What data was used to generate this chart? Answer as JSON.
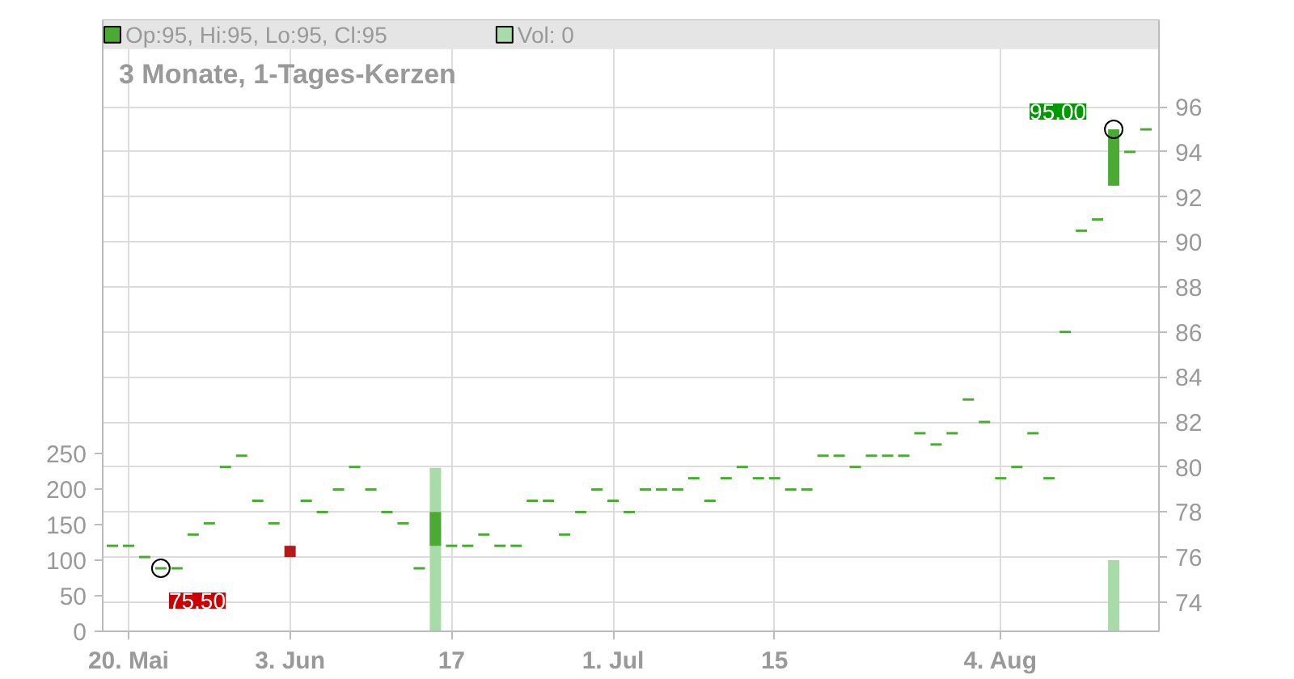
{
  "chart_data": {
    "type": "candlestick",
    "title": "3 Monate, 1-Tages-Kerzen",
    "categories": [
      null,
      "20. Mai",
      null,
      null,
      null,
      null,
      null,
      null,
      null,
      null,
      null,
      "3. Jun",
      null,
      null,
      null,
      null,
      null,
      null,
      null,
      null,
      null,
      "17",
      null,
      null,
      null,
      null,
      null,
      null,
      null,
      null,
      null,
      "1. Jul",
      null,
      null,
      null,
      null,
      null,
      null,
      null,
      null,
      null,
      "15",
      null,
      null,
      null,
      null,
      null,
      null,
      null,
      null,
      null,
      null,
      null,
      null,
      null,
      "4. Aug",
      null,
      null,
      null,
      null,
      null,
      null,
      null,
      null,
      null
    ],
    "series": [
      {
        "name": "Op:95, Hi:95, Lo:95, Cl:95",
        "color": "#4aaa33",
        "ohlc": [
          [
            76.5,
            76.5,
            76.5,
            76.5
          ],
          [
            76.5,
            76.5,
            76.5,
            76.5
          ],
          [
            76,
            76,
            76,
            76
          ],
          [
            75.5,
            75.5,
            75.5,
            75.5
          ],
          [
            75.5,
            75.5,
            75.5,
            75.5
          ],
          [
            77,
            77,
            77,
            77
          ],
          [
            77.5,
            77.5,
            77.5,
            77.5
          ],
          [
            80,
            80,
            80,
            80
          ],
          [
            80.5,
            80.5,
            80.5,
            80.5
          ],
          [
            78.5,
            78.5,
            78.5,
            78.5
          ],
          [
            77.5,
            77.5,
            77.5,
            77.5
          ],
          [
            76.5,
            76.5,
            76,
            76
          ],
          [
            78.5,
            78.5,
            78.5,
            78.5
          ],
          [
            78,
            78,
            78,
            78
          ],
          [
            79,
            79,
            79,
            79
          ],
          [
            80,
            80,
            80,
            80
          ],
          [
            79,
            79,
            79,
            79
          ],
          [
            78,
            78,
            78,
            78
          ],
          [
            77.5,
            77.5,
            77.5,
            77.5
          ],
          [
            75.5,
            75.5,
            75.5,
            75.5
          ],
          [
            76.5,
            78,
            76.5,
            78
          ],
          [
            76.5,
            76.5,
            76.5,
            76.5
          ],
          [
            76.5,
            76.5,
            76.5,
            76.5
          ],
          [
            77,
            77,
            77,
            77
          ],
          [
            76.5,
            76.5,
            76.5,
            76.5
          ],
          [
            76.5,
            76.5,
            76.5,
            76.5
          ],
          [
            78.5,
            78.5,
            78.5,
            78.5
          ],
          [
            78.5,
            78.5,
            78.5,
            78.5
          ],
          [
            77,
            77,
            77,
            77
          ],
          [
            78,
            78,
            78,
            78
          ],
          [
            79,
            79,
            79,
            79
          ],
          [
            78.5,
            78.5,
            78.5,
            78.5
          ],
          [
            78,
            78,
            78,
            78
          ],
          [
            79,
            79,
            79,
            79
          ],
          [
            79,
            79,
            79,
            79
          ],
          [
            79,
            79,
            79,
            79
          ],
          [
            79.5,
            79.5,
            79.5,
            79.5
          ],
          [
            78.5,
            78.5,
            78.5,
            78.5
          ],
          [
            79.5,
            79.5,
            79.5,
            79.5
          ],
          [
            80,
            80,
            80,
            80
          ],
          [
            79.5,
            79.5,
            79.5,
            79.5
          ],
          [
            79.5,
            79.5,
            79.5,
            79.5
          ],
          [
            79,
            79,
            79,
            79
          ],
          [
            79,
            79,
            79,
            79
          ],
          [
            80.5,
            80.5,
            80.5,
            80.5
          ],
          [
            80.5,
            80.5,
            80.5,
            80.5
          ],
          [
            80,
            80,
            80,
            80
          ],
          [
            80.5,
            80.5,
            80.5,
            80.5
          ],
          [
            80.5,
            80.5,
            80.5,
            80.5
          ],
          [
            80.5,
            80.5,
            80.5,
            80.5
          ],
          [
            81.5,
            81.5,
            81.5,
            81.5
          ],
          [
            81,
            81,
            81,
            81
          ],
          [
            81.5,
            81.5,
            81.5,
            81.5
          ],
          [
            83,
            83,
            83,
            83
          ],
          [
            82,
            82,
            82,
            82
          ],
          [
            79.5,
            79.5,
            79.5,
            79.5
          ],
          [
            80,
            80,
            80,
            80
          ],
          [
            81.5,
            81.5,
            81.5,
            81.5
          ],
          [
            79.5,
            79.5,
            79.5,
            79.5
          ],
          [
            86,
            86,
            86,
            86
          ],
          [
            90.5,
            90.5,
            90.5,
            90.5
          ],
          [
            91,
            91,
            91,
            91
          ],
          [
            92.5,
            95,
            92.5,
            95
          ],
          [
            94,
            94,
            94,
            94
          ],
          [
            95,
            95,
            95,
            95
          ]
        ],
        "colors": [
          "#4aaa33",
          "#4aaa33",
          "#4aaa33",
          "#4aaa33",
          "#4aaa33",
          "#4aaa33",
          "#4aaa33",
          "#4aaa33",
          "#4aaa33",
          "#4aaa33",
          "#4aaa33",
          "#b31b1b",
          "#4aaa33",
          "#4aaa33",
          "#4aaa33",
          "#4aaa33",
          "#4aaa33",
          "#4aaa33",
          "#4aaa33",
          "#4aaa33",
          "#4aaa33",
          "#4aaa33",
          "#4aaa33",
          "#4aaa33",
          "#4aaa33",
          "#4aaa33",
          "#4aaa33",
          "#4aaa33",
          "#4aaa33",
          "#4aaa33",
          "#4aaa33",
          "#4aaa33",
          "#4aaa33",
          "#4aaa33",
          "#4aaa33",
          "#4aaa33",
          "#4aaa33",
          "#4aaa33",
          "#4aaa33",
          "#4aaa33",
          "#4aaa33",
          "#4aaa33",
          "#4aaa33",
          "#4aaa33",
          "#4aaa33",
          "#4aaa33",
          "#4aaa33",
          "#4aaa33",
          "#4aaa33",
          "#4aaa33",
          "#4aaa33",
          "#4aaa33",
          "#4aaa33",
          "#4aaa33",
          "#4aaa33",
          "#4aaa33",
          "#4aaa33",
          "#4aaa33",
          "#4aaa33",
          "#4aaa33",
          "#4aaa33",
          "#4aaa33",
          "#4aaa33",
          "#4aaa33",
          "#4aaa33"
        ]
      },
      {
        "type": "bar",
        "name": "Vol: 0",
        "axis": "y2",
        "color": "#a8dba8",
        "values": [
          0,
          0,
          0,
          0,
          0,
          0,
          0,
          0,
          0,
          0,
          0,
          0,
          0,
          0,
          0,
          0,
          0,
          0,
          0,
          0,
          230,
          0,
          0,
          0,
          0,
          0,
          0,
          0,
          0,
          0,
          0,
          0,
          0,
          0,
          0,
          0,
          0,
          0,
          0,
          0,
          0,
          0,
          0,
          0,
          0,
          0,
          0,
          0,
          0,
          0,
          0,
          0,
          0,
          0,
          0,
          0,
          0,
          0,
          0,
          0,
          0,
          0,
          100,
          0,
          0
        ]
      },
      {
        "type": "scatter",
        "color": "#000000",
        "marker": "circle",
        "values": [
          null,
          null,
          null,
          75.5,
          null,
          null,
          null,
          null,
          null,
          null,
          null,
          null,
          null,
          null,
          null,
          null,
          null,
          null,
          null,
          null,
          null,
          null,
          null,
          null,
          null,
          null,
          null,
          null,
          null,
          null,
          null,
          null,
          null,
          null,
          null,
          null,
          null,
          null,
          null,
          null,
          null,
          null,
          null,
          null,
          null,
          null,
          null,
          null,
          null,
          null,
          null,
          null,
          null,
          null,
          null,
          null,
          null,
          null,
          null,
          null,
          null,
          null,
          95,
          null,
          null
        ]
      }
    ],
    "ylim": [
      72.7,
      99.85
    ],
    "yticks": [
      74,
      76,
      78,
      80,
      82,
      84,
      86,
      88,
      90,
      92,
      94,
      96
    ],
    "y2lim": [
      0,
      860
    ],
    "y2ticks": [
      0,
      50,
      100,
      150,
      200,
      250
    ],
    "annotations": [
      "75,50",
      "95,00"
    ],
    "grid": true,
    "legend": "top left"
  }
}
